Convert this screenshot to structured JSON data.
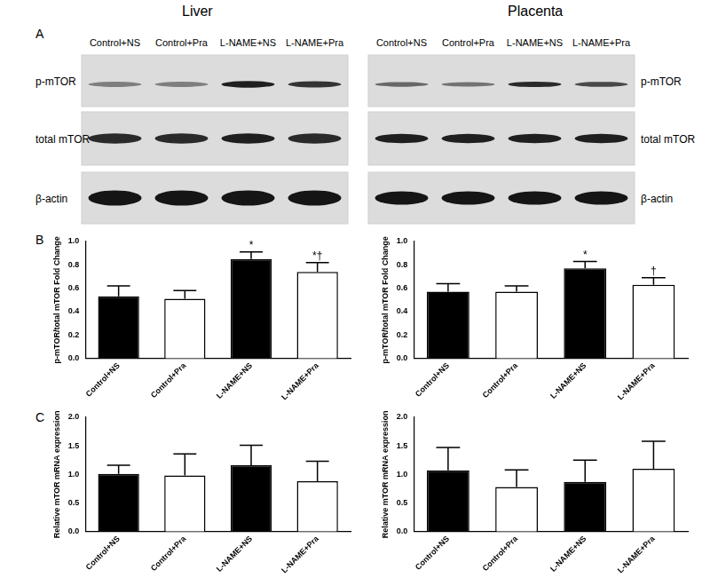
{
  "figure": {
    "columns": [
      "Liver",
      "Placenta"
    ],
    "panels": [
      "A",
      "B",
      "C"
    ],
    "blot": {
      "lanes": [
        "Control+NS",
        "Control+Pra",
        "L-NAME+NS",
        "L-NAME+Pra"
      ],
      "rows": [
        "p-mTOR",
        "total mTOR",
        "β-actin"
      ]
    }
  },
  "chart_data": [
    {
      "type": "bar",
      "categories": [
        "Control+NS",
        "Control+Pra",
        "L-NAME+NS",
        "L-NAME+Pra"
      ],
      "values": [
        0.53,
        0.51,
        0.85,
        0.74
      ],
      "errors": [
        0.09,
        0.07,
        0.06,
        0.08
      ],
      "annotations": [
        null,
        null,
        "*",
        "*†"
      ],
      "colors": [
        "#000000",
        "#ffffff",
        "#000000",
        "#ffffff"
      ],
      "y_label": "p-mTOR/total mTOR Fold Change",
      "ylim": [
        0,
        1.0
      ],
      "yticks": [
        {
          "value": 0,
          "label": "0.0"
        },
        {
          "value": 0.2,
          "label": "0.2"
        },
        {
          "value": 0.4,
          "label": "0.4"
        },
        {
          "value": 0.6,
          "label": "0.6"
        },
        {
          "value": 0.8,
          "label": "0.8"
        },
        {
          "value": 1.0,
          "label": "1.0"
        }
      ],
      "grid": false
    },
    {
      "type": "bar",
      "categories": [
        "Control+NS",
        "Control+Pra",
        "L-NAME+NS",
        "L-NAME+Pra"
      ],
      "values": [
        0.57,
        0.57,
        0.77,
        0.63
      ],
      "errors": [
        0.07,
        0.05,
        0.06,
        0.06
      ],
      "annotations": [
        null,
        null,
        "*",
        "†"
      ],
      "colors": [
        "#000000",
        "#ffffff",
        "#000000",
        "#ffffff"
      ],
      "y_label": "p-mTOR/total mTOR Fold Change",
      "ylim": [
        0,
        1.0
      ],
      "yticks": [
        {
          "value": 0,
          "label": "0.0"
        },
        {
          "value": 0.2,
          "label": "0.2"
        },
        {
          "value": 0.4,
          "label": "0.4"
        },
        {
          "value": 0.6,
          "label": "0.6"
        },
        {
          "value": 0.8,
          "label": "0.8"
        },
        {
          "value": 1.0,
          "label": "1.0"
        }
      ],
      "grid": false
    },
    {
      "type": "bar",
      "categories": [
        "Control+NS",
        "Control+Pra",
        "L-NAME+NS",
        "L-NAME+Pra"
      ],
      "values": [
        1.01,
        0.98,
        1.16,
        0.88
      ],
      "errors": [
        0.15,
        0.38,
        0.35,
        0.35
      ],
      "colors": [
        "#000000",
        "#ffffff",
        "#000000",
        "#ffffff"
      ],
      "y_label": "Relative mTOR mRNA expression",
      "ylim": [
        0,
        2.0
      ],
      "yticks": [
        {
          "value": 0,
          "label": "0.0"
        },
        {
          "value": 0.5,
          "label": "0.5"
        },
        {
          "value": 1.0,
          "label": "1.0"
        },
        {
          "value": 1.5,
          "label": "1.5"
        },
        {
          "value": 2.0,
          "label": "2.0"
        }
      ],
      "grid": false
    },
    {
      "type": "bar",
      "categories": [
        "Control+NS",
        "Control+Pra",
        "L-NAME+NS",
        "L-NAME+Pra"
      ],
      "values": [
        1.07,
        0.78,
        0.87,
        1.1
      ],
      "errors": [
        0.4,
        0.3,
        0.38,
        0.48
      ],
      "colors": [
        "#000000",
        "#ffffff",
        "#000000",
        "#ffffff"
      ],
      "y_label": "Relative mTOR mRNA expression",
      "ylim": [
        0,
        2.0
      ],
      "yticks": [
        {
          "value": 0,
          "label": "0.0"
        },
        {
          "value": 0.5,
          "label": "0.5"
        },
        {
          "value": 1.0,
          "label": "1.0"
        },
        {
          "value": 1.5,
          "label": "1.5"
        },
        {
          "value": 2.0,
          "label": "2.0"
        }
      ],
      "grid": false
    }
  ]
}
